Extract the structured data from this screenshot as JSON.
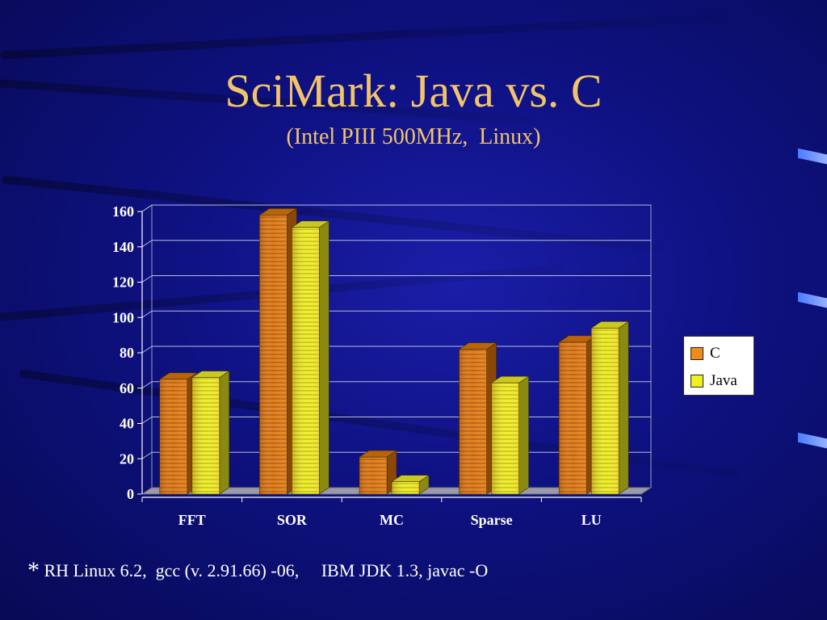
{
  "slide": {
    "title": "SciMark: Java vs. C",
    "subtitle": "(Intel PIII 500MHz,  Linux)",
    "footnote_star": "*",
    "footnote_text": " RH Linux 6.2,  gcc (v. 2.91.66) -06,     IBM JDK 1.3, javac -O"
  },
  "colors": {
    "c_series": "#f08a1a",
    "java_series": "#f0f020",
    "title": "#f2c46a",
    "background": "#0e1180"
  },
  "chart_data": {
    "type": "bar",
    "categories": [
      "FFT",
      "SOR",
      "MC",
      "Sparse",
      "LU"
    ],
    "series": [
      {
        "name": "C",
        "values": [
          65,
          158,
          21,
          82,
          86
        ]
      },
      {
        "name": "Java",
        "values": [
          66,
          151,
          7,
          63,
          94
        ]
      }
    ],
    "ylim": [
      0,
      160
    ],
    "yticks": [
      0,
      20,
      40,
      60,
      80,
      100,
      120,
      140,
      160
    ],
    "grid": true,
    "legend": "right",
    "style": "3d-bar"
  }
}
